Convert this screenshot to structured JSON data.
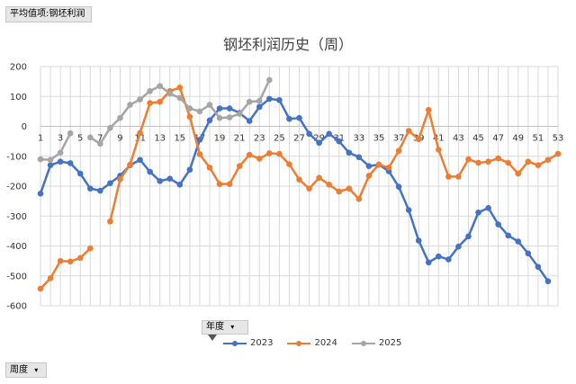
{
  "pivot": {
    "value_field": "平均值项:钢坯利润",
    "year_field": "年度",
    "week_field": "周度"
  },
  "colors": {
    "2023": "#4472c4",
    "2024": "#ed7d31",
    "2025": "#a5a5a5"
  },
  "chart_data": {
    "type": "line",
    "title": "钢坯利润历史（周）",
    "x": [
      1,
      2,
      3,
      4,
      5,
      6,
      7,
      8,
      9,
      10,
      11,
      12,
      13,
      14,
      15,
      16,
      17,
      18,
      19,
      20,
      21,
      22,
      23,
      24,
      25,
      26,
      27,
      28,
      29,
      30,
      31,
      32,
      33,
      34,
      35,
      36,
      37,
      38,
      39,
      40,
      41,
      42,
      43,
      44,
      45,
      46,
      47,
      48,
      49,
      50,
      51,
      52,
      53
    ],
    "x_tick_labels": [
      "1",
      "3",
      "5",
      "7",
      "9",
      "11",
      "13",
      "15",
      "17",
      "19",
      "21",
      "23",
      "25",
      "27",
      "29",
      "31",
      "33",
      "35",
      "37",
      "39",
      "41",
      "43",
      "45",
      "47",
      "49",
      "51",
      "53"
    ],
    "y_ticks": [
      200,
      100,
      0,
      -100,
      -200,
      -300,
      -400,
      -500,
      -600
    ],
    "ylim": [
      -600,
      200
    ],
    "xlim": [
      1,
      53
    ],
    "grid": true,
    "legend_position": "bottom",
    "series": [
      {
        "name": "2023",
        "values": [
          -225,
          -130,
          -118,
          -123,
          -158,
          -208,
          -215,
          -190,
          -165,
          -130,
          -112,
          -152,
          -183,
          -175,
          -195,
          -145,
          -45,
          20,
          60,
          60,
          45,
          18,
          65,
          92,
          88,
          25,
          28,
          -25,
          -55,
          -25,
          -50,
          -88,
          -103,
          -133,
          -128,
          -150,
          -202,
          -280,
          -382,
          -455,
          -435,
          -445,
          -402,
          -368,
          -288,
          -273,
          -328,
          -365,
          -385,
          -425,
          -470,
          -518,
          null
        ]
      },
      {
        "name": "2024",
        "values": [
          -543,
          -508,
          -450,
          -452,
          -440,
          -408,
          null,
          -318,
          -177,
          -128,
          -22,
          78,
          82,
          118,
          130,
          32,
          -93,
          -138,
          -193,
          -193,
          -133,
          -95,
          -108,
          -90,
          -92,
          -127,
          -178,
          -208,
          -172,
          -195,
          -218,
          -208,
          -243,
          -165,
          -128,
          -138,
          -82,
          -15,
          -43,
          55,
          -78,
          -168,
          -168,
          -110,
          -122,
          -118,
          -107,
          -122,
          -158,
          -118,
          -130,
          -112,
          -92
        ]
      },
      {
        "name": "2025",
        "values": [
          -110,
          -112,
          -88,
          -23,
          null,
          -37,
          -58,
          -5,
          28,
          72,
          90,
          118,
          135,
          110,
          95,
          60,
          50,
          72,
          28,
          30,
          42,
          82,
          85,
          155,
          null,
          null,
          null,
          null,
          null,
          null,
          null,
          null,
          null,
          null,
          null,
          null,
          null,
          null,
          null,
          null,
          null,
          null,
          null,
          null,
          null,
          null,
          null,
          null,
          null,
          null,
          null,
          null,
          null
        ]
      }
    ]
  }
}
